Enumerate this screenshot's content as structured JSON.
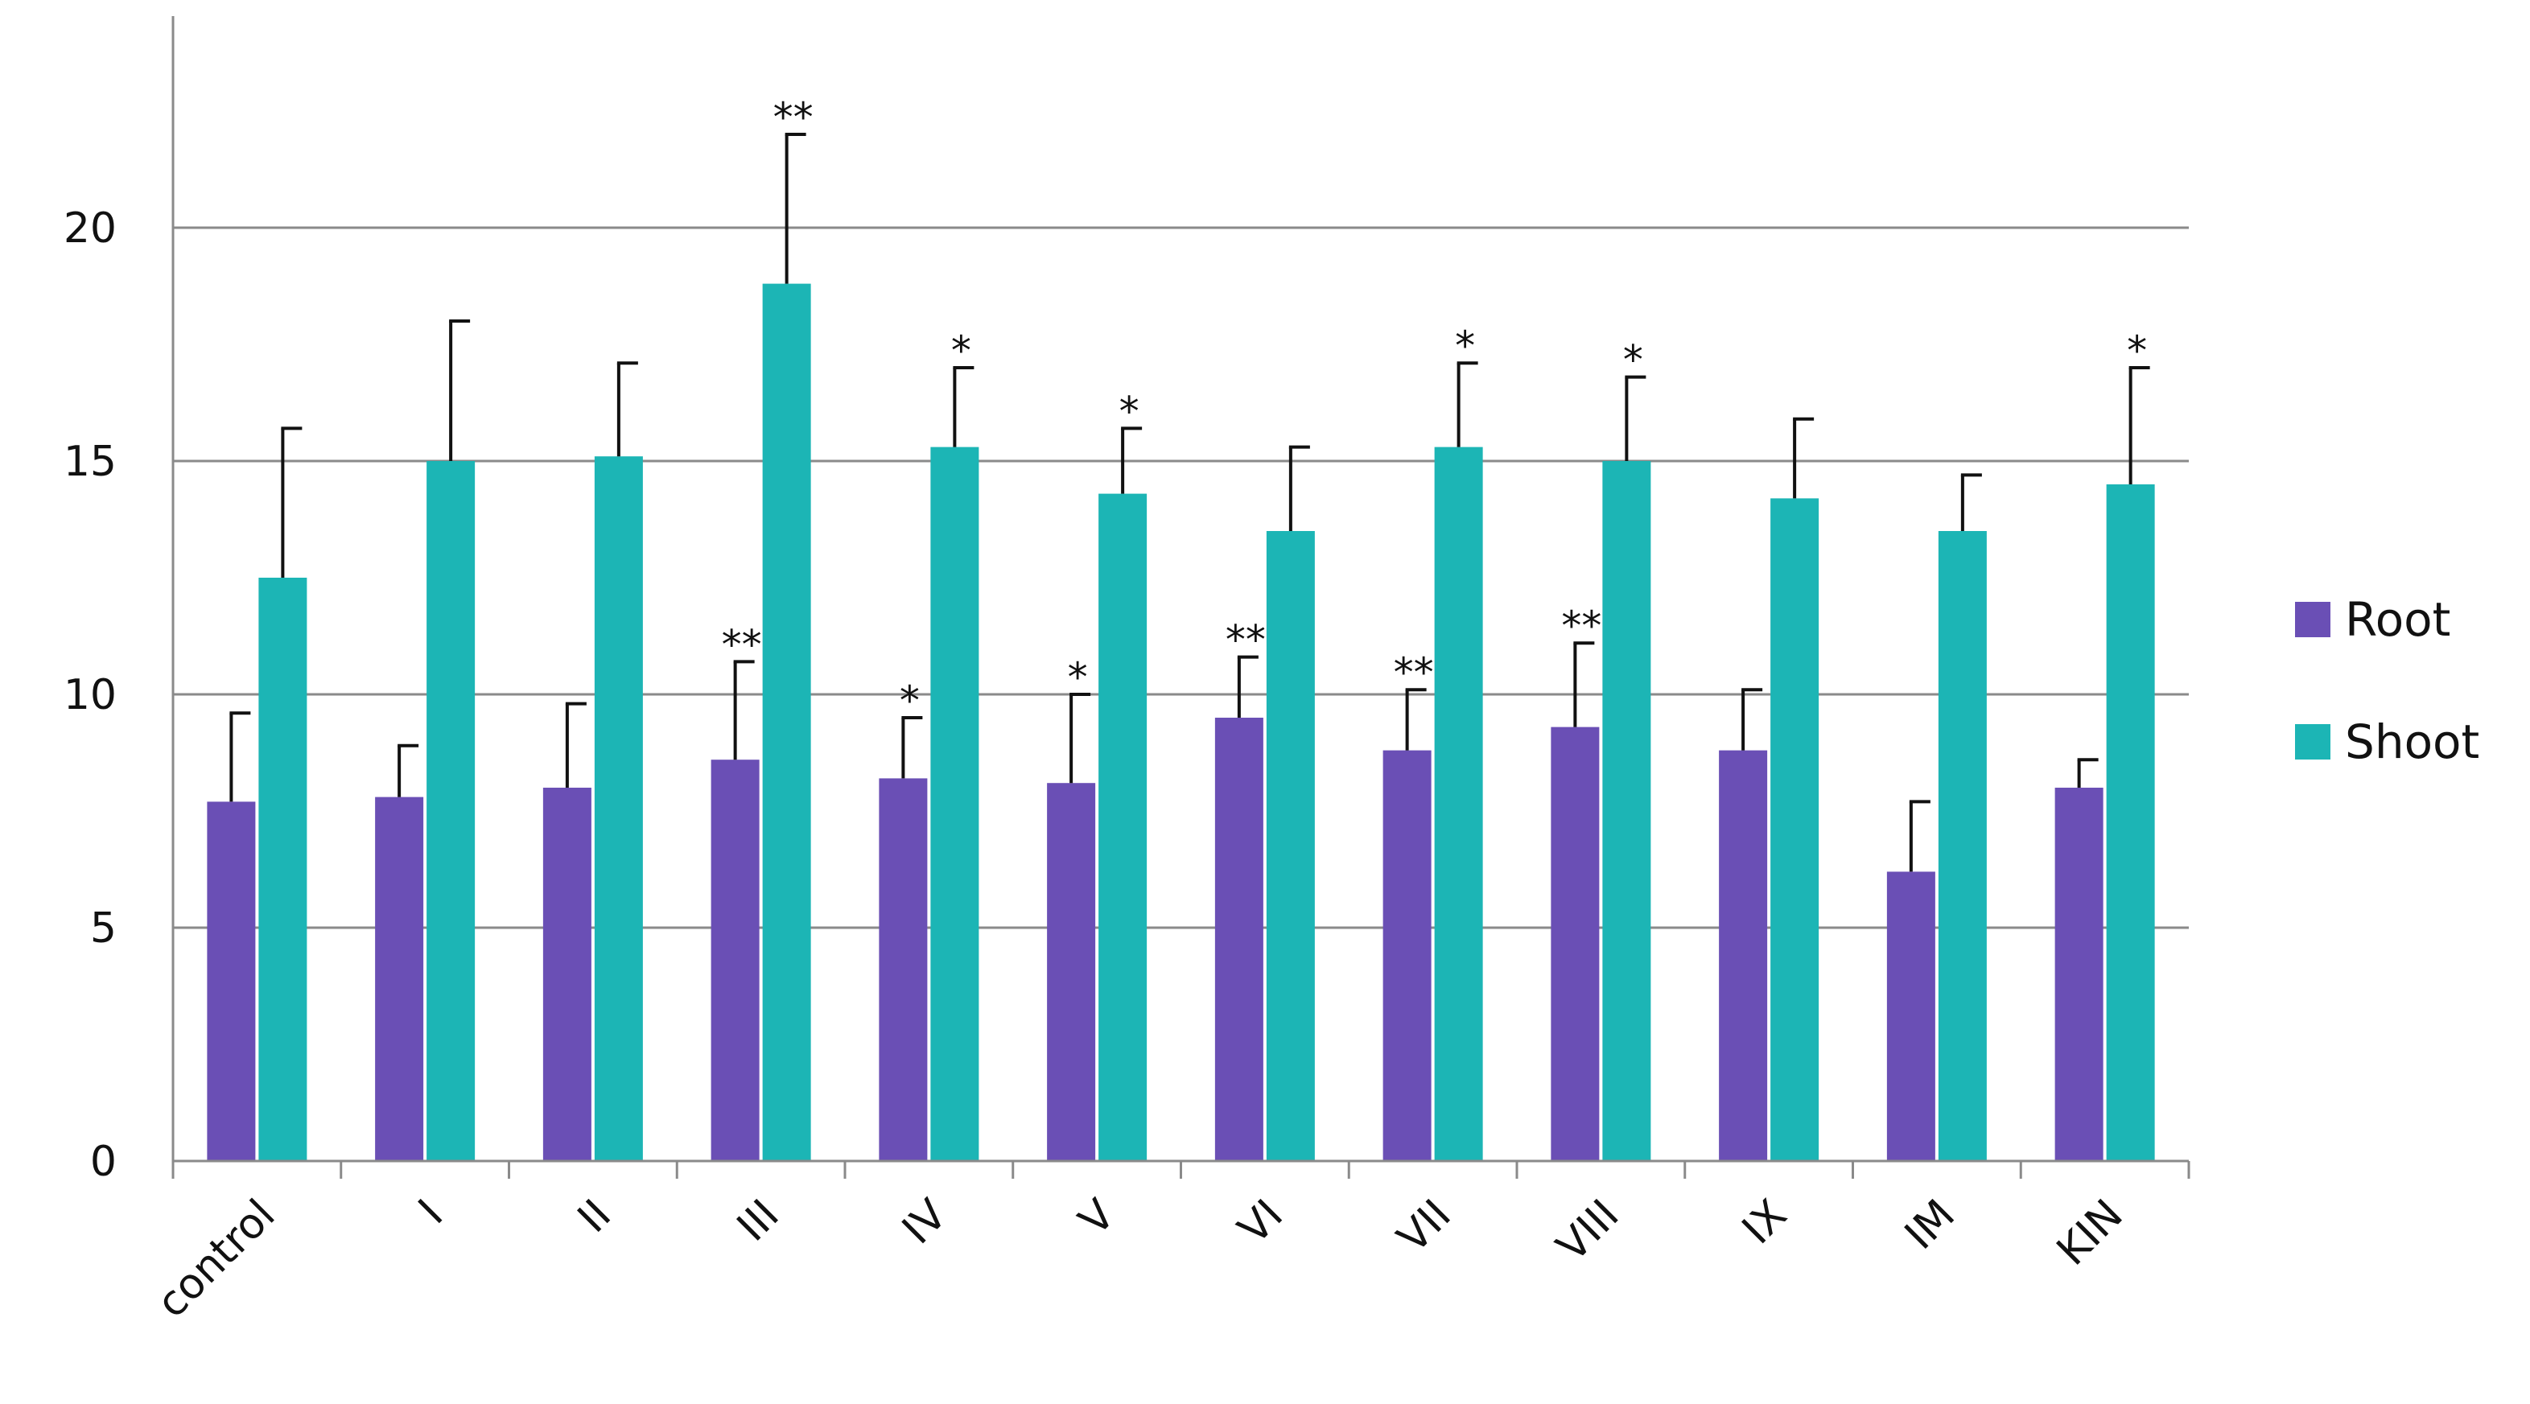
{
  "chart_data": {
    "type": "bar",
    "title": "",
    "xlabel": "",
    "ylabel": "",
    "ylim": [
      0,
      24
    ],
    "yticks": [
      0,
      5,
      10,
      15,
      20
    ],
    "grid": true,
    "legend_position": "right",
    "categories": [
      "control",
      "I",
      "II",
      "III",
      "IV",
      "V",
      "VI",
      "VII",
      "VIII",
      "IX",
      "IM",
      "KIN"
    ],
    "series": [
      {
        "name": "Root",
        "color": "#6a4fb5",
        "values": [
          7.7,
          7.8,
          8.0,
          8.6,
          8.2,
          8.1,
          9.5,
          8.8,
          9.3,
          8.8,
          6.2,
          8.0
        ],
        "errors": [
          1.9,
          1.1,
          1.8,
          2.1,
          1.3,
          1.9,
          1.3,
          1.3,
          1.8,
          1.3,
          1.5,
          0.6
        ],
        "significance": [
          "",
          "",
          "",
          "**",
          "*",
          "*",
          "**",
          "**",
          "**",
          "",
          "",
          ""
        ]
      },
      {
        "name": "Shoot",
        "color": "#1cb5b5",
        "values": [
          12.5,
          15.0,
          15.1,
          18.8,
          15.3,
          14.3,
          13.5,
          15.3,
          15.0,
          14.2,
          13.5,
          14.5
        ],
        "errors": [
          3.2,
          3.0,
          2.0,
          3.2,
          1.7,
          1.4,
          1.8,
          1.8,
          1.8,
          1.7,
          1.2,
          2.5
        ],
        "significance": [
          "",
          "",
          "",
          "**",
          "*",
          "*",
          "",
          "*",
          "*",
          "",
          "",
          "*"
        ]
      }
    ]
  }
}
